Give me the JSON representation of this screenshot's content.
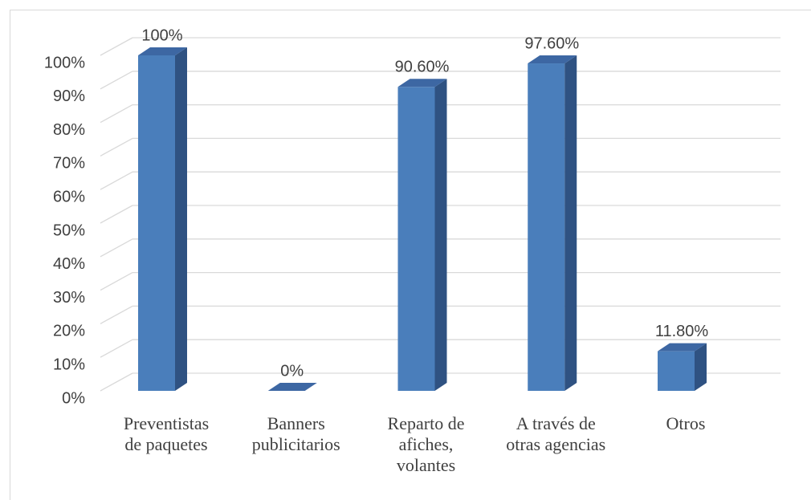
{
  "chart_data": {
    "type": "bar3d",
    "categories": [
      "Preventistas de paquetes",
      "Banners publicitarios",
      "Reparto de afiches, volantes",
      "A través de otras agencias",
      "Otros"
    ],
    "values": [
      100,
      0,
      90.6,
      97.6,
      11.8
    ],
    "value_labels": [
      "100%",
      "0%",
      "90.60%",
      "97.60%",
      "11.80%"
    ],
    "color": "#4a7ebb",
    "ylim": [
      0,
      100
    ],
    "yticks": [
      {
        "value": 0,
        "label": "0%"
      },
      {
        "value": 10,
        "label": "10%"
      },
      {
        "value": 20,
        "label": "20%"
      },
      {
        "value": 30,
        "label": "30%"
      },
      {
        "value": 40,
        "label": "40%"
      },
      {
        "value": 50,
        "label": "50%"
      },
      {
        "value": 60,
        "label": "60%"
      },
      {
        "value": 70,
        "label": "70%"
      },
      {
        "value": 80,
        "label": "80%"
      },
      {
        "value": 90,
        "label": "90%"
      },
      {
        "value": 100,
        "label": "100%"
      }
    ],
    "grid": true
  }
}
